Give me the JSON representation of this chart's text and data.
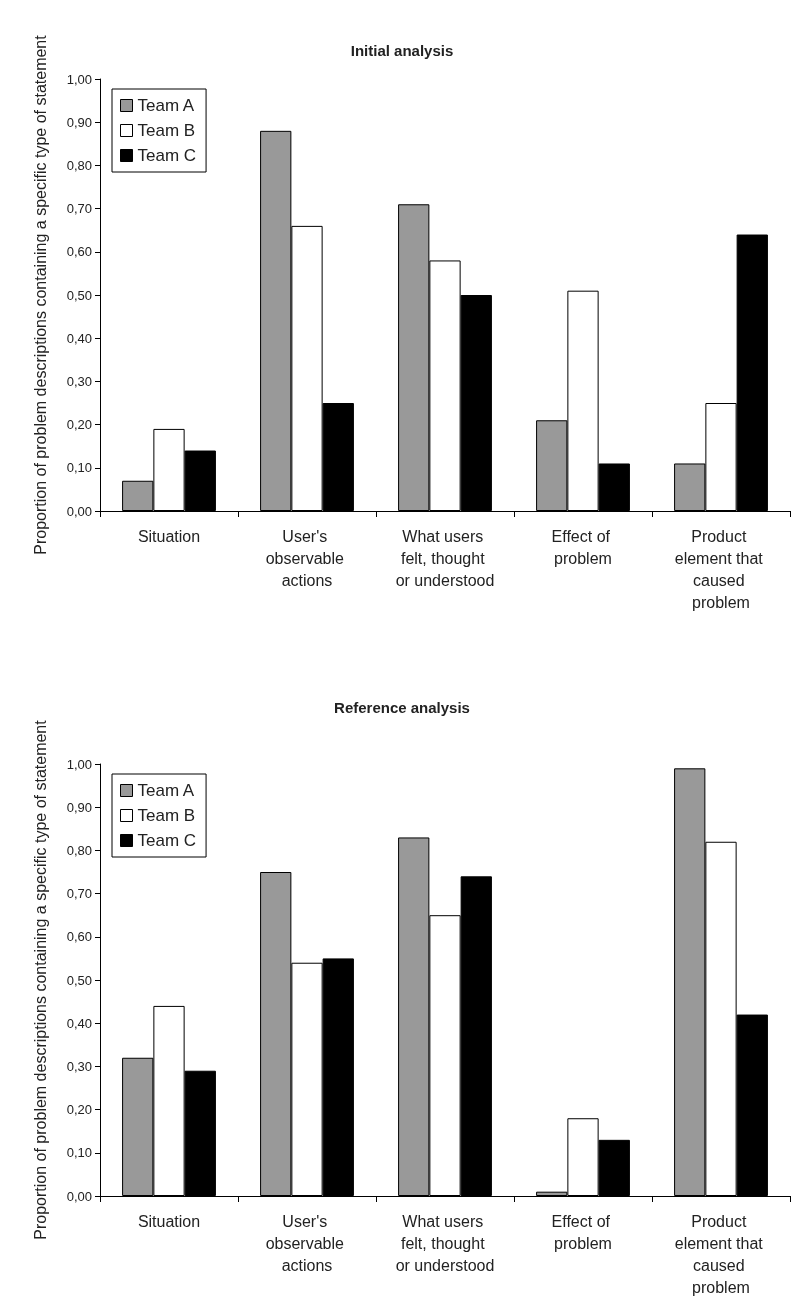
{
  "chart_data": [
    {
      "type": "bar",
      "title": "Initial analysis",
      "ylabel": "Proportion of problem descriptions containing a specific type of statement",
      "categories": [
        "Situation",
        "User's observable actions",
        "What users felt, thought or understood",
        "Effect of problem",
        "Product element that caused problem"
      ],
      "series": [
        {
          "name": "Team A",
          "color": "#999999",
          "values": [
            0.07,
            0.88,
            0.71,
            0.21,
            0.11
          ]
        },
        {
          "name": "Team B",
          "color": "#ffffff",
          "values": [
            0.19,
            0.66,
            0.58,
            0.51,
            0.25
          ]
        },
        {
          "name": "Team C",
          "color": "#000000",
          "values": [
            0.14,
            0.25,
            0.5,
            0.11,
            0.64
          ]
        }
      ],
      "ylim": [
        0,
        1
      ],
      "yticks": [
        {
          "value": 0,
          "label": "0,00"
        },
        {
          "value": 0.1,
          "label": "0,10"
        },
        {
          "value": 0.2,
          "label": "0,20"
        },
        {
          "value": 0.3,
          "label": "0,30"
        },
        {
          "value": 0.4,
          "label": "0,40"
        },
        {
          "value": 0.5,
          "label": "0,50"
        },
        {
          "value": 0.6,
          "label": "0,60"
        },
        {
          "value": 0.7,
          "label": "0,70"
        },
        {
          "value": 0.8,
          "label": "0,80"
        },
        {
          "value": 0.9,
          "label": "0,90"
        },
        {
          "value": 1,
          "label": "1,00"
        }
      ],
      "grid": false,
      "legend": "top left"
    },
    {
      "type": "bar",
      "title": "Reference analysis",
      "ylabel": "Proportion of problem descriptions containing a specific type of statement",
      "categories": [
        "Situation",
        "User's observable actions",
        "What users felt, thought or understood",
        "Effect of problem",
        "Product element that caused problem"
      ],
      "series": [
        {
          "name": "Team A",
          "color": "#999999",
          "values": [
            0.32,
            0.75,
            0.83,
            0.01,
            0.99
          ]
        },
        {
          "name": "Team B",
          "color": "#ffffff",
          "values": [
            0.44,
            0.54,
            0.65,
            0.18,
            0.82
          ]
        },
        {
          "name": "Team C",
          "color": "#000000",
          "values": [
            0.29,
            0.55,
            0.74,
            0.13,
            0.42
          ]
        }
      ],
      "ylim": [
        0,
        1
      ],
      "yticks": [
        {
          "value": 0,
          "label": "0,00"
        },
        {
          "value": 0.1,
          "label": "0,10"
        },
        {
          "value": 0.2,
          "label": "0,20"
        },
        {
          "value": 0.3,
          "label": "0,30"
        },
        {
          "value": 0.4,
          "label": "0,40"
        },
        {
          "value": 0.5,
          "label": "0,50"
        },
        {
          "value": 0.6,
          "label": "0,60"
        },
        {
          "value": 0.7,
          "label": "0,70"
        },
        {
          "value": 0.8,
          "label": "0,80"
        },
        {
          "value": 0.9,
          "label": "0,90"
        },
        {
          "value": 1,
          "label": "1,00"
        }
      ],
      "grid": false,
      "legend": "top left"
    }
  ]
}
